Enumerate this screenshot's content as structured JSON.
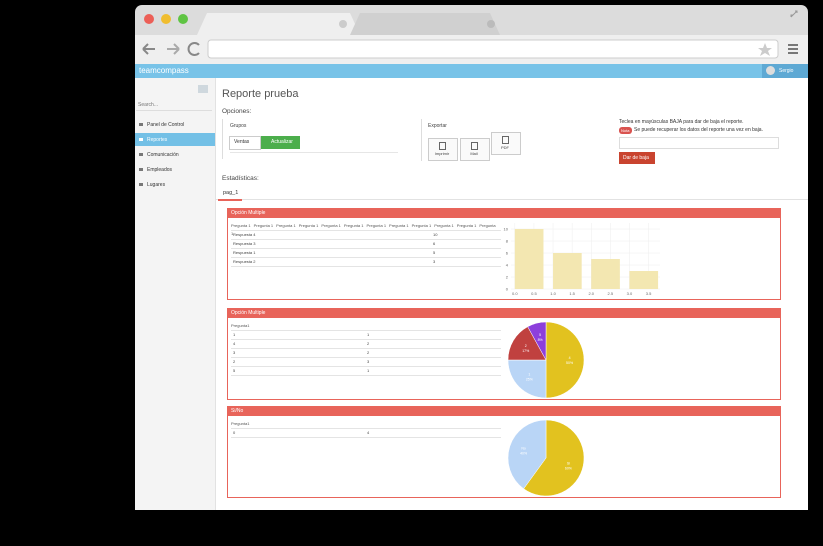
{
  "header": {
    "brand": "teamcompass",
    "user": "Sergio"
  },
  "sidebar": {
    "search": "Search...",
    "nav": [
      "Panel de Control",
      "Reportes",
      "Comunicación",
      "Empleados",
      "Lugares"
    ],
    "active": 1
  },
  "page": {
    "title": "Reporte prueba",
    "options_label": "Opciones:",
    "groups_label": "Grupos",
    "group_select": "Ventas",
    "update_button": "Actualizar",
    "export_label": "Exportar",
    "export_buttons": [
      "Imprimir",
      "Mail",
      "PDF"
    ],
    "delete_instructions": "Teclea en mayúsculas BAJA para dar de baja el reporte.",
    "note_badge": "Nota",
    "note_text": "Se puede recuperar los datos del reporte una vez en baja.",
    "delete_button": "Dar de baja",
    "stats_label": "Estadísticas:",
    "tab": "pag_1"
  },
  "panels": [
    {
      "title": "Opción Multiple",
      "table": {
        "header": [
          "Pregunta 1",
          "Pregunta 1",
          "Pregunta 1",
          "Pregunta 1",
          "Pregunta 1",
          "Pregunta 1",
          "Pregunta 1",
          "Pregunta 1",
          "Pregunta 1",
          "Pregunta 1",
          "Pregunta 1",
          "Pregunta 1"
        ],
        "rows": [
          [
            "Respuesta 4",
            "10"
          ],
          [
            "Respuesta 3",
            "6"
          ],
          [
            "Respuesta 1",
            "5"
          ],
          [
            "Respuesta 2",
            "3"
          ]
        ]
      },
      "chart": {
        "type": "bar",
        "x": [
          0,
          1,
          2,
          3
        ],
        "values": [
          10,
          6,
          5,
          3
        ],
        "color": "#f3e7b1",
        "xlim": [
          -0.1,
          3.8
        ],
        "xticks": [
          {
            "value": 0,
            "label": "0.0"
          },
          {
            "value": 0.5,
            "label": "0.5"
          },
          {
            "value": 1,
            "label": "1.0"
          },
          {
            "value": 1.5,
            "label": "1.5"
          },
          {
            "value": 2,
            "label": "2.0"
          },
          {
            "value": 2.5,
            "label": "2.5"
          },
          {
            "value": 3,
            "label": "3.0"
          },
          {
            "value": 3.5,
            "label": "3.5"
          }
        ],
        "ylim": [
          0,
          11
        ],
        "yticks": [
          0,
          2,
          4,
          6,
          8,
          10
        ],
        "grid": true
      }
    },
    {
      "title": "Opción Multiple",
      "table": {
        "header": [
          "Pregunta1"
        ],
        "rows": [
          [
            "1",
            "1"
          ],
          [
            "4",
            "2"
          ],
          [
            "3",
            "2"
          ],
          [
            "2",
            "3"
          ],
          [
            "5",
            "1"
          ]
        ]
      },
      "chart": {
        "type": "pie",
        "labels": [
          "4",
          "1",
          "2",
          "5"
        ],
        "values": [
          50,
          25,
          17,
          8
        ],
        "value_labels": [
          "50%",
          "25%",
          "17%",
          "8%"
        ],
        "colors": [
          "#e2c21f",
          "#b9d5f6",
          "#c0413f",
          "#8d3fdc"
        ]
      }
    },
    {
      "title": "Si/No",
      "table": {
        "header": [
          "Pregunta1"
        ],
        "rows": [
          [
            "0",
            "4"
          ]
        ]
      },
      "chart": {
        "type": "pie",
        "labels": [
          "Si",
          "No"
        ],
        "values": [
          60,
          40
        ],
        "value_labels": [
          "60%",
          "40%"
        ],
        "colors": [
          "#e2c21f",
          "#b9d5f6"
        ]
      }
    }
  ]
}
